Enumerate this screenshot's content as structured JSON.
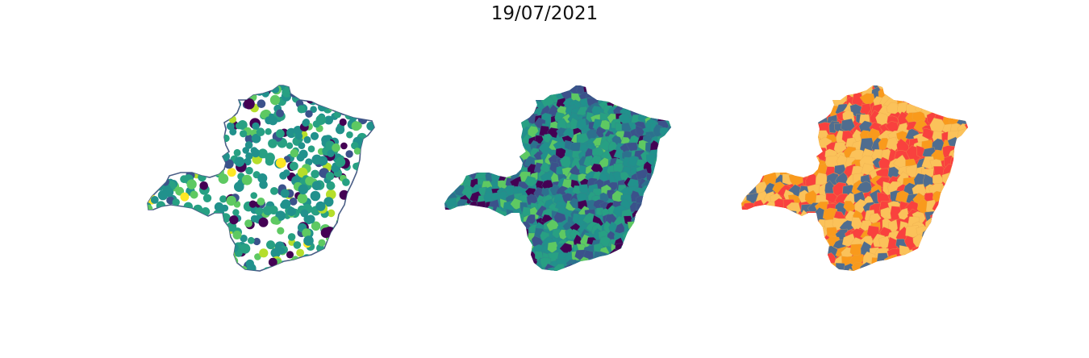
{
  "figure": {
    "title": "19/07/2021"
  },
  "maps": [
    {
      "style": "points",
      "palette": [
        "#440154",
        "#3b528b",
        "#21918c",
        "#27a083",
        "#5ec962",
        "#b5de2b",
        "#fde725"
      ],
      "outline_color": "#4a5e86"
    },
    {
      "style": "choropleth",
      "palette": [
        "#440154",
        "#3b528b",
        "#2c718e",
        "#21918c",
        "#27a083",
        "#5ec962",
        "#b5de2b",
        "#fde725"
      ]
    },
    {
      "style": "choropleth",
      "palette": [
        "#fbc25a",
        "#fbc25a",
        "#4f6d8f",
        "#f9413e",
        "#f99a1c"
      ]
    }
  ]
}
